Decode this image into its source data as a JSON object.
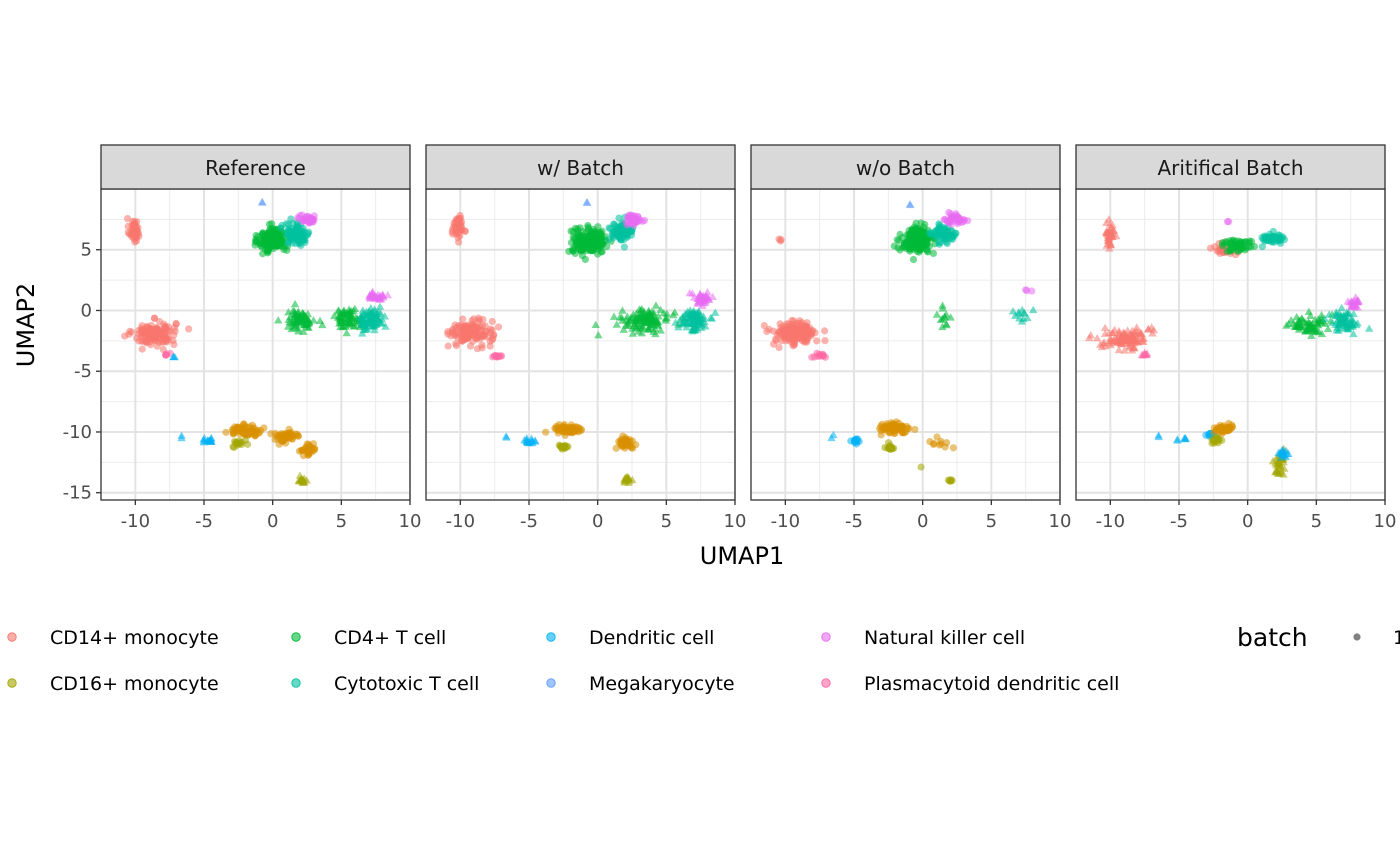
{
  "chart_data": {
    "type": "scatter",
    "xlabel": "UMAP1",
    "ylabel": "UMAP2",
    "xlim": [
      -12.5,
      10
    ],
    "ylim": [
      -15.6,
      10
    ],
    "x_ticks": [
      -10,
      -5,
      0,
      5,
      10
    ],
    "x_tick_labels": [
      "-10",
      "-5",
      "0",
      "5",
      "10"
    ],
    "y_ticks": [
      5,
      0,
      -5,
      -10,
      -15
    ],
    "y_tick_labels": [
      "5",
      "0",
      "-5",
      "-10",
      "-15"
    ],
    "grid": true,
    "panels": [
      "Reference",
      "w/ Batch",
      "w/o Batch",
      "Aritifical Batch"
    ],
    "legend": {
      "position": "bottom",
      "cell_types": [
        {
          "label": "CD14+ monocyte",
          "color": "#F8766D"
        },
        {
          "label": "CD16+ monocyte",
          "color": "#A3A500"
        },
        {
          "label": "CD4+ T cell",
          "color": "#00BA38"
        },
        {
          "label": "Cytotoxic T cell",
          "color": "#00C19F"
        },
        {
          "label": "Dendritic cell",
          "color": "#00B0F6"
        },
        {
          "label": "Megakaryocyte",
          "color": "#619CFF"
        },
        {
          "label": "Natural killer cell",
          "color": "#E76BF3"
        },
        {
          "label": "Plasmacytoid dendritic cell",
          "color": "#FF67A4"
        }
      ],
      "batch_title": "batch",
      "batch_entries": [
        {
          "label": "1",
          "shape": "circle"
        }
      ]
    },
    "extra_colors": {
      "B cell": "#D89000"
    },
    "clusters": [
      {
        "panel": 0,
        "color": "#F8766D",
        "shape": "circle",
        "cx": -10.1,
        "cy": 6.6,
        "sx": 0.35,
        "sy": 0.9,
        "n": 45
      },
      {
        "panel": 0,
        "color": "#F8766D",
        "shape": "circle",
        "cx": -8.6,
        "cy": -1.9,
        "sx": 1.4,
        "sy": 0.9,
        "n": 130
      },
      {
        "panel": 0,
        "color": "#FF67A4",
        "shape": "circle",
        "cx": -7.7,
        "cy": -3.6,
        "sx": 0.3,
        "sy": 0.1,
        "n": 5
      },
      {
        "panel": 0,
        "color": "#00B0F6",
        "shape": "triangle",
        "cx": -7.2,
        "cy": -3.8,
        "sx": 0.1,
        "sy": 0.1,
        "n": 3
      },
      {
        "panel": 0,
        "color": "#00BA38",
        "shape": "circle",
        "cx": 0.0,
        "cy": 5.8,
        "sx": 0.9,
        "sy": 0.9,
        "n": 180
      },
      {
        "panel": 0,
        "color": "#00C19F",
        "shape": "circle",
        "cx": 1.8,
        "cy": 6.3,
        "sx": 0.8,
        "sy": 0.8,
        "n": 100
      },
      {
        "panel": 0,
        "color": "#E76BF3",
        "shape": "circle",
        "cx": 2.6,
        "cy": 7.5,
        "sx": 0.6,
        "sy": 0.3,
        "n": 30
      },
      {
        "panel": 0,
        "color": "#619CFF",
        "shape": "triangle",
        "cx": -0.8,
        "cy": 8.9,
        "sx": 0.1,
        "sy": 0.1,
        "n": 2
      },
      {
        "panel": 0,
        "color": "#00BA38",
        "shape": "triangle",
        "cx": 2.0,
        "cy": -0.8,
        "sx": 1.0,
        "sy": 0.8,
        "n": 70
      },
      {
        "panel": 0,
        "color": "#00BA38",
        "shape": "triangle",
        "cx": 5.5,
        "cy": -0.6,
        "sx": 1.0,
        "sy": 0.7,
        "n": 70
      },
      {
        "panel": 0,
        "color": "#00C19F",
        "shape": "triangle",
        "cx": 7.2,
        "cy": -0.8,
        "sx": 0.8,
        "sy": 0.8,
        "n": 80
      },
      {
        "panel": 0,
        "color": "#E76BF3",
        "shape": "triangle",
        "cx": 7.6,
        "cy": 1.2,
        "sx": 0.5,
        "sy": 0.4,
        "n": 30
      },
      {
        "panel": 0,
        "color": "#00B0F6",
        "shape": "triangle",
        "cx": -6.6,
        "cy": -10.4,
        "sx": 0.1,
        "sy": 0.1,
        "n": 2
      },
      {
        "panel": 0,
        "color": "#00B0F6",
        "shape": "triangle",
        "cx": -4.7,
        "cy": -10.7,
        "sx": 0.5,
        "sy": 0.2,
        "n": 15
      },
      {
        "panel": 0,
        "color": "#D89000",
        "shape": "circle",
        "cx": -2.0,
        "cy": -9.9,
        "sx": 1.1,
        "sy": 0.4,
        "n": 70
      },
      {
        "panel": 0,
        "color": "#D89000",
        "shape": "circle",
        "cx": 1.0,
        "cy": -10.4,
        "sx": 1.0,
        "sy": 0.4,
        "n": 50
      },
      {
        "panel": 0,
        "color": "#D89000",
        "shape": "circle",
        "cx": 2.6,
        "cy": -11.4,
        "sx": 0.6,
        "sy": 0.5,
        "n": 30
      },
      {
        "panel": 0,
        "color": "#A3A500",
        "shape": "circle",
        "cx": -2.4,
        "cy": -11.0,
        "sx": 0.4,
        "sy": 0.3,
        "n": 15
      },
      {
        "panel": 0,
        "color": "#A3A500",
        "shape": "triangle",
        "cx": 2.2,
        "cy": -14.0,
        "sx": 0.3,
        "sy": 0.3,
        "n": 15
      },
      {
        "panel": 1,
        "color": "#F8766D",
        "shape": "circle",
        "cx": -10.2,
        "cy": 6.8,
        "sx": 0.35,
        "sy": 0.8,
        "n": 45
      },
      {
        "panel": 1,
        "color": "#F8766D",
        "shape": "circle",
        "cx": -9.2,
        "cy": -1.8,
        "sx": 1.4,
        "sy": 0.9,
        "n": 130
      },
      {
        "panel": 1,
        "color": "#FF67A4",
        "shape": "circle",
        "cx": -7.4,
        "cy": -3.8,
        "sx": 0.4,
        "sy": 0.15,
        "n": 10
      },
      {
        "panel": 1,
        "color": "#00BA38",
        "shape": "circle",
        "cx": -0.6,
        "cy": 5.7,
        "sx": 1.1,
        "sy": 0.9,
        "n": 200
      },
      {
        "panel": 1,
        "color": "#00C19F",
        "shape": "circle",
        "cx": 1.7,
        "cy": 6.4,
        "sx": 0.8,
        "sy": 0.7,
        "n": 80
      },
      {
        "panel": 1,
        "color": "#E76BF3",
        "shape": "circle",
        "cx": 2.6,
        "cy": 7.5,
        "sx": 0.6,
        "sy": 0.4,
        "n": 40
      },
      {
        "panel": 1,
        "color": "#619CFF",
        "shape": "triangle",
        "cx": -0.8,
        "cy": 8.9,
        "sx": 0.1,
        "sy": 0.1,
        "n": 2
      },
      {
        "panel": 1,
        "color": "#00BA38",
        "shape": "triangle",
        "cx": 3.5,
        "cy": -0.8,
        "sx": 1.6,
        "sy": 0.8,
        "n": 120
      },
      {
        "panel": 1,
        "color": "#00C19F",
        "shape": "triangle",
        "cx": 7.0,
        "cy": -0.8,
        "sx": 0.9,
        "sy": 0.8,
        "n": 90
      },
      {
        "panel": 1,
        "color": "#E76BF3",
        "shape": "triangle",
        "cx": 7.6,
        "cy": 1.0,
        "sx": 0.6,
        "sy": 0.5,
        "n": 40
      },
      {
        "panel": 1,
        "color": "#00B0F6",
        "shape": "triangle",
        "cx": -6.6,
        "cy": -10.4,
        "sx": 0.1,
        "sy": 0.1,
        "n": 2
      },
      {
        "panel": 1,
        "color": "#00B0F6",
        "shape": "triangle",
        "cx": -5.0,
        "cy": -10.8,
        "sx": 0.5,
        "sy": 0.2,
        "n": 15
      },
      {
        "panel": 1,
        "color": "#D89000",
        "shape": "circle",
        "cx": -2.2,
        "cy": -9.8,
        "sx": 0.9,
        "sy": 0.4,
        "n": 70
      },
      {
        "panel": 1,
        "color": "#D89000",
        "shape": "circle",
        "cx": 2.0,
        "cy": -10.9,
        "sx": 0.6,
        "sy": 0.5,
        "n": 40
      },
      {
        "panel": 1,
        "color": "#A3A500",
        "shape": "circle",
        "cx": -2.5,
        "cy": -11.2,
        "sx": 0.3,
        "sy": 0.3,
        "n": 15
      },
      {
        "panel": 1,
        "color": "#A3A500",
        "shape": "triangle",
        "cx": 2.2,
        "cy": -14.0,
        "sx": 0.3,
        "sy": 0.3,
        "n": 15
      },
      {
        "panel": 2,
        "color": "#F8766D",
        "shape": "circle",
        "cx": -10.4,
        "cy": 5.8,
        "sx": 0.1,
        "sy": 0.1,
        "n": 3
      },
      {
        "panel": 2,
        "color": "#F8766D",
        "shape": "circle",
        "cx": -9.3,
        "cy": -1.9,
        "sx": 1.5,
        "sy": 0.9,
        "n": 150
      },
      {
        "panel": 2,
        "color": "#FF67A4",
        "shape": "circle",
        "cx": -7.5,
        "cy": -3.7,
        "sx": 0.5,
        "sy": 0.2,
        "n": 12
      },
      {
        "panel": 2,
        "color": "#00BA38",
        "shape": "circle",
        "cx": -0.4,
        "cy": 5.8,
        "sx": 1.0,
        "sy": 0.9,
        "n": 200
      },
      {
        "panel": 2,
        "color": "#00C19F",
        "shape": "circle",
        "cx": 1.6,
        "cy": 6.3,
        "sx": 0.8,
        "sy": 0.7,
        "n": 70
      },
      {
        "panel": 2,
        "color": "#E76BF3",
        "shape": "circle",
        "cx": 2.4,
        "cy": 7.5,
        "sx": 0.7,
        "sy": 0.4,
        "n": 40
      },
      {
        "panel": 2,
        "color": "#619CFF",
        "shape": "triangle",
        "cx": -0.8,
        "cy": 8.8,
        "sx": 0.1,
        "sy": 0.1,
        "n": 2
      },
      {
        "panel": 2,
        "color": "#00BA38",
        "shape": "triangle",
        "cx": 1.6,
        "cy": -0.4,
        "sx": 0.4,
        "sy": 0.9,
        "n": 12
      },
      {
        "panel": 2,
        "color": "#00C19F",
        "shape": "triangle",
        "cx": 7.3,
        "cy": -0.3,
        "sx": 0.9,
        "sy": 0.5,
        "n": 12
      },
      {
        "panel": 2,
        "color": "#E76BF3",
        "shape": "circle",
        "cx": 7.6,
        "cy": 1.6,
        "sx": 0.3,
        "sy": 0.2,
        "n": 3
      },
      {
        "panel": 2,
        "color": "#00B0F6",
        "shape": "triangle",
        "cx": -6.6,
        "cy": -10.4,
        "sx": 0.1,
        "sy": 0.1,
        "n": 2
      },
      {
        "panel": 2,
        "color": "#00B0F6",
        "shape": "circle",
        "cx": -4.9,
        "cy": -10.8,
        "sx": 0.3,
        "sy": 0.2,
        "n": 12
      },
      {
        "panel": 2,
        "color": "#D89000",
        "shape": "circle",
        "cx": -2.3,
        "cy": -9.7,
        "sx": 1.0,
        "sy": 0.4,
        "n": 70
      },
      {
        "panel": 2,
        "color": "#D89000",
        "shape": "circle",
        "cx": 1.2,
        "cy": -10.8,
        "sx": 0.8,
        "sy": 0.6,
        "n": 10
      },
      {
        "panel": 2,
        "color": "#A3A500",
        "shape": "circle",
        "cx": -2.4,
        "cy": -11.2,
        "sx": 0.3,
        "sy": 0.3,
        "n": 15
      },
      {
        "panel": 2,
        "color": "#A3A500",
        "shape": "circle",
        "cx": -0.1,
        "cy": -12.9,
        "sx": 0.05,
        "sy": 0.05,
        "n": 1
      },
      {
        "panel": 2,
        "color": "#A3A500",
        "shape": "circle",
        "cx": 2.1,
        "cy": -14.0,
        "sx": 0.2,
        "sy": 0.1,
        "n": 6
      },
      {
        "panel": 3,
        "color": "#F8766D",
        "shape": "triangle",
        "cx": -10.0,
        "cy": 6.3,
        "sx": 0.3,
        "sy": 0.9,
        "n": 40
      },
      {
        "panel": 3,
        "color": "#F8766D",
        "shape": "triangle",
        "cx": -8.8,
        "cy": -2.3,
        "sx": 1.5,
        "sy": 0.8,
        "n": 110
      },
      {
        "panel": 3,
        "color": "#FF67A4",
        "shape": "triangle",
        "cx": -7.6,
        "cy": -3.6,
        "sx": 0.4,
        "sy": 0.15,
        "n": 8
      },
      {
        "panel": 3,
        "color": "#F8766D",
        "shape": "circle",
        "cx": -1.8,
        "cy": 5.0,
        "sx": 0.8,
        "sy": 0.5,
        "n": 30
      },
      {
        "panel": 3,
        "color": "#00BA38",
        "shape": "circle",
        "cx": -0.8,
        "cy": 5.4,
        "sx": 0.9,
        "sy": 0.5,
        "n": 60
      },
      {
        "panel": 3,
        "color": "#00C19F",
        "shape": "circle",
        "cx": 1.8,
        "cy": 5.9,
        "sx": 0.8,
        "sy": 0.4,
        "n": 50
      },
      {
        "panel": 3,
        "color": "#E76BF3",
        "shape": "circle",
        "cx": -1.4,
        "cy": 7.3,
        "sx": 0.1,
        "sy": 0.1,
        "n": 2
      },
      {
        "panel": 3,
        "color": "#00BA38",
        "shape": "triangle",
        "cx": 4.5,
        "cy": -1.1,
        "sx": 1.3,
        "sy": 0.7,
        "n": 70
      },
      {
        "panel": 3,
        "color": "#00C19F",
        "shape": "triangle",
        "cx": 7.0,
        "cy": -0.9,
        "sx": 0.9,
        "sy": 0.8,
        "n": 70
      },
      {
        "panel": 3,
        "color": "#E76BF3",
        "shape": "triangle",
        "cx": 7.8,
        "cy": 0.6,
        "sx": 0.4,
        "sy": 0.5,
        "n": 25
      },
      {
        "panel": 3,
        "color": "#00B0F6",
        "shape": "triangle",
        "cx": -6.5,
        "cy": -10.4,
        "sx": 0.1,
        "sy": 0.1,
        "n": 2
      },
      {
        "panel": 3,
        "color": "#00B0F6",
        "shape": "triangle",
        "cx": -4.8,
        "cy": -10.6,
        "sx": 0.3,
        "sy": 0.1,
        "n": 6
      },
      {
        "panel": 3,
        "color": "#00B0F6",
        "shape": "circle",
        "cx": -2.7,
        "cy": -10.2,
        "sx": 0.3,
        "sy": 0.2,
        "n": 12
      },
      {
        "panel": 3,
        "color": "#D89000",
        "shape": "circle",
        "cx": -1.8,
        "cy": -9.8,
        "sx": 0.6,
        "sy": 0.3,
        "n": 40
      },
      {
        "panel": 3,
        "color": "#A3A500",
        "shape": "circle",
        "cx": -2.3,
        "cy": -10.7,
        "sx": 0.3,
        "sy": 0.3,
        "n": 15
      },
      {
        "panel": 3,
        "color": "#A3A500",
        "shape": "triangle",
        "cx": 2.3,
        "cy": -12.6,
        "sx": 0.3,
        "sy": 1.0,
        "n": 35
      },
      {
        "panel": 3,
        "color": "#00B0F6",
        "shape": "triangle",
        "cx": 2.6,
        "cy": -11.8,
        "sx": 0.3,
        "sy": 0.4,
        "n": 15
      }
    ]
  }
}
